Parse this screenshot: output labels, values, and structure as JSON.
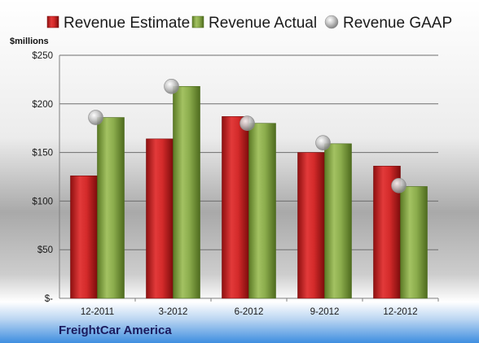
{
  "colors": {
    "estimate": "#d42a2a",
    "actual": "#8cad4d",
    "gaap": "#b4b4b4",
    "grid": "#6e6e6e"
  },
  "chart_data": {
    "type": "bar",
    "title": "",
    "ylabel": "$millions",
    "xlabel": "",
    "caption": "FreightCar America",
    "categories": [
      "12-2011",
      "3-2012",
      "6-2012",
      "9-2012",
      "12-2012"
    ],
    "ylim": [
      0,
      250
    ],
    "yticks": [
      0,
      50,
      100,
      150,
      200,
      250
    ],
    "ytick_labels": [
      "$-",
      "$50",
      "$100",
      "$150",
      "$200",
      "$250"
    ],
    "grid": true,
    "legend_position": "top",
    "series": [
      {
        "name": "Revenue Estimate",
        "type": "bar",
        "values": [
          126,
          164,
          187,
          150,
          136
        ]
      },
      {
        "name": "Revenue Actual",
        "type": "bar",
        "values": [
          186,
          218,
          180,
          159,
          115
        ]
      },
      {
        "name": "Revenue GAAP",
        "type": "scatter",
        "values": [
          186,
          218,
          180,
          160,
          116
        ]
      }
    ]
  }
}
